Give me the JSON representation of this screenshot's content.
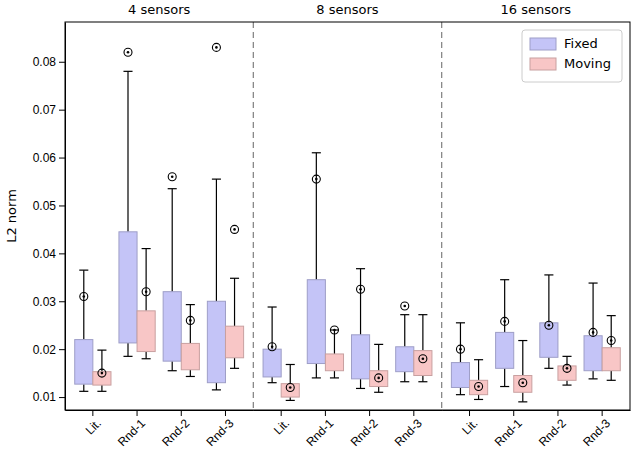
{
  "chart_data": {
    "type": "box",
    "ylabel": "L2 norm",
    "panels": [
      "4 sensors",
      "8 sensors",
      "16 sensors"
    ],
    "categories": [
      "Lit.",
      "Rnd-1",
      "Rnd-2",
      "Rnd-3"
    ],
    "ylim": [
      0.0073,
      0.0883
    ],
    "yticks": [
      0.01,
      0.02,
      0.03,
      0.04,
      0.05,
      0.06,
      0.07,
      0.08
    ],
    "legend": "upper right",
    "marker": "circle",
    "series": [
      {
        "name": "Fixed",
        "color": "#c4c4f7",
        "whisker_low": [
          [
            0.0112,
            0.0185,
            0.0155,
            0.0115
          ],
          [
            0.013,
            0.014,
            0.0118,
            0.0132
          ],
          [
            0.0105,
            0.0122,
            0.016,
            0.0138
          ]
        ],
        "q1": [
          [
            0.0127,
            0.0213,
            0.0175,
            0.013
          ],
          [
            0.0142,
            0.017,
            0.0138,
            0.0153
          ],
          [
            0.012,
            0.016,
            0.0183,
            0.0155
          ]
        ],
        "q3": [
          [
            0.022,
            0.0445,
            0.032,
            0.03
          ],
          [
            0.02,
            0.0345,
            0.023,
            0.0205
          ],
          [
            0.0172,
            0.0235,
            0.0255,
            0.0228
          ]
        ],
        "whisker_high": [
          [
            0.0365,
            0.078,
            0.0535,
            0.0555
          ],
          [
            0.0288,
            0.061,
            0.0368,
            0.0272
          ],
          [
            0.0255,
            0.0345,
            0.0355,
            0.0338
          ]
        ],
        "mean": [
          [
            0.031,
            0.082,
            0.056,
            0.083
          ],
          [
            0.0205,
            0.0555,
            0.0325,
            0.029
          ],
          [
            0.02,
            0.0258,
            0.025,
            0.0235
          ]
        ]
      },
      {
        "name": "Moving",
        "color": "#f8c6c6",
        "whisker_low": [
          [
            0.0112,
            0.018,
            0.0143,
            0.016
          ],
          [
            0.0093,
            0.014,
            0.011,
            0.0132
          ],
          [
            0.0095,
            0.009,
            0.0125,
            0.0135
          ]
        ],
        "q1": [
          [
            0.0125,
            0.0195,
            0.0157,
            0.0182
          ],
          [
            0.01,
            0.0155,
            0.0122,
            0.0145
          ],
          [
            0.0105,
            0.011,
            0.0135,
            0.0155
          ]
        ],
        "q3": [
          [
            0.0153,
            0.028,
            0.0212,
            0.0248
          ],
          [
            0.0128,
            0.019,
            0.0155,
            0.0197
          ],
          [
            0.0135,
            0.0145,
            0.0165,
            0.0203
          ]
        ],
        "whisker_high": [
          [
            0.0198,
            0.041,
            0.0293,
            0.0348
          ],
          [
            0.0168,
            0.024,
            0.021,
            0.0272
          ],
          [
            0.0178,
            0.0218,
            0.0185,
            0.027
          ]
        ],
        "mean": [
          [
            0.015,
            0.032,
            0.026,
            0.045
          ],
          [
            0.012,
            0.024,
            0.014,
            0.018
          ],
          [
            0.0122,
            0.013,
            0.016,
            0.0218
          ]
        ]
      }
    ]
  }
}
